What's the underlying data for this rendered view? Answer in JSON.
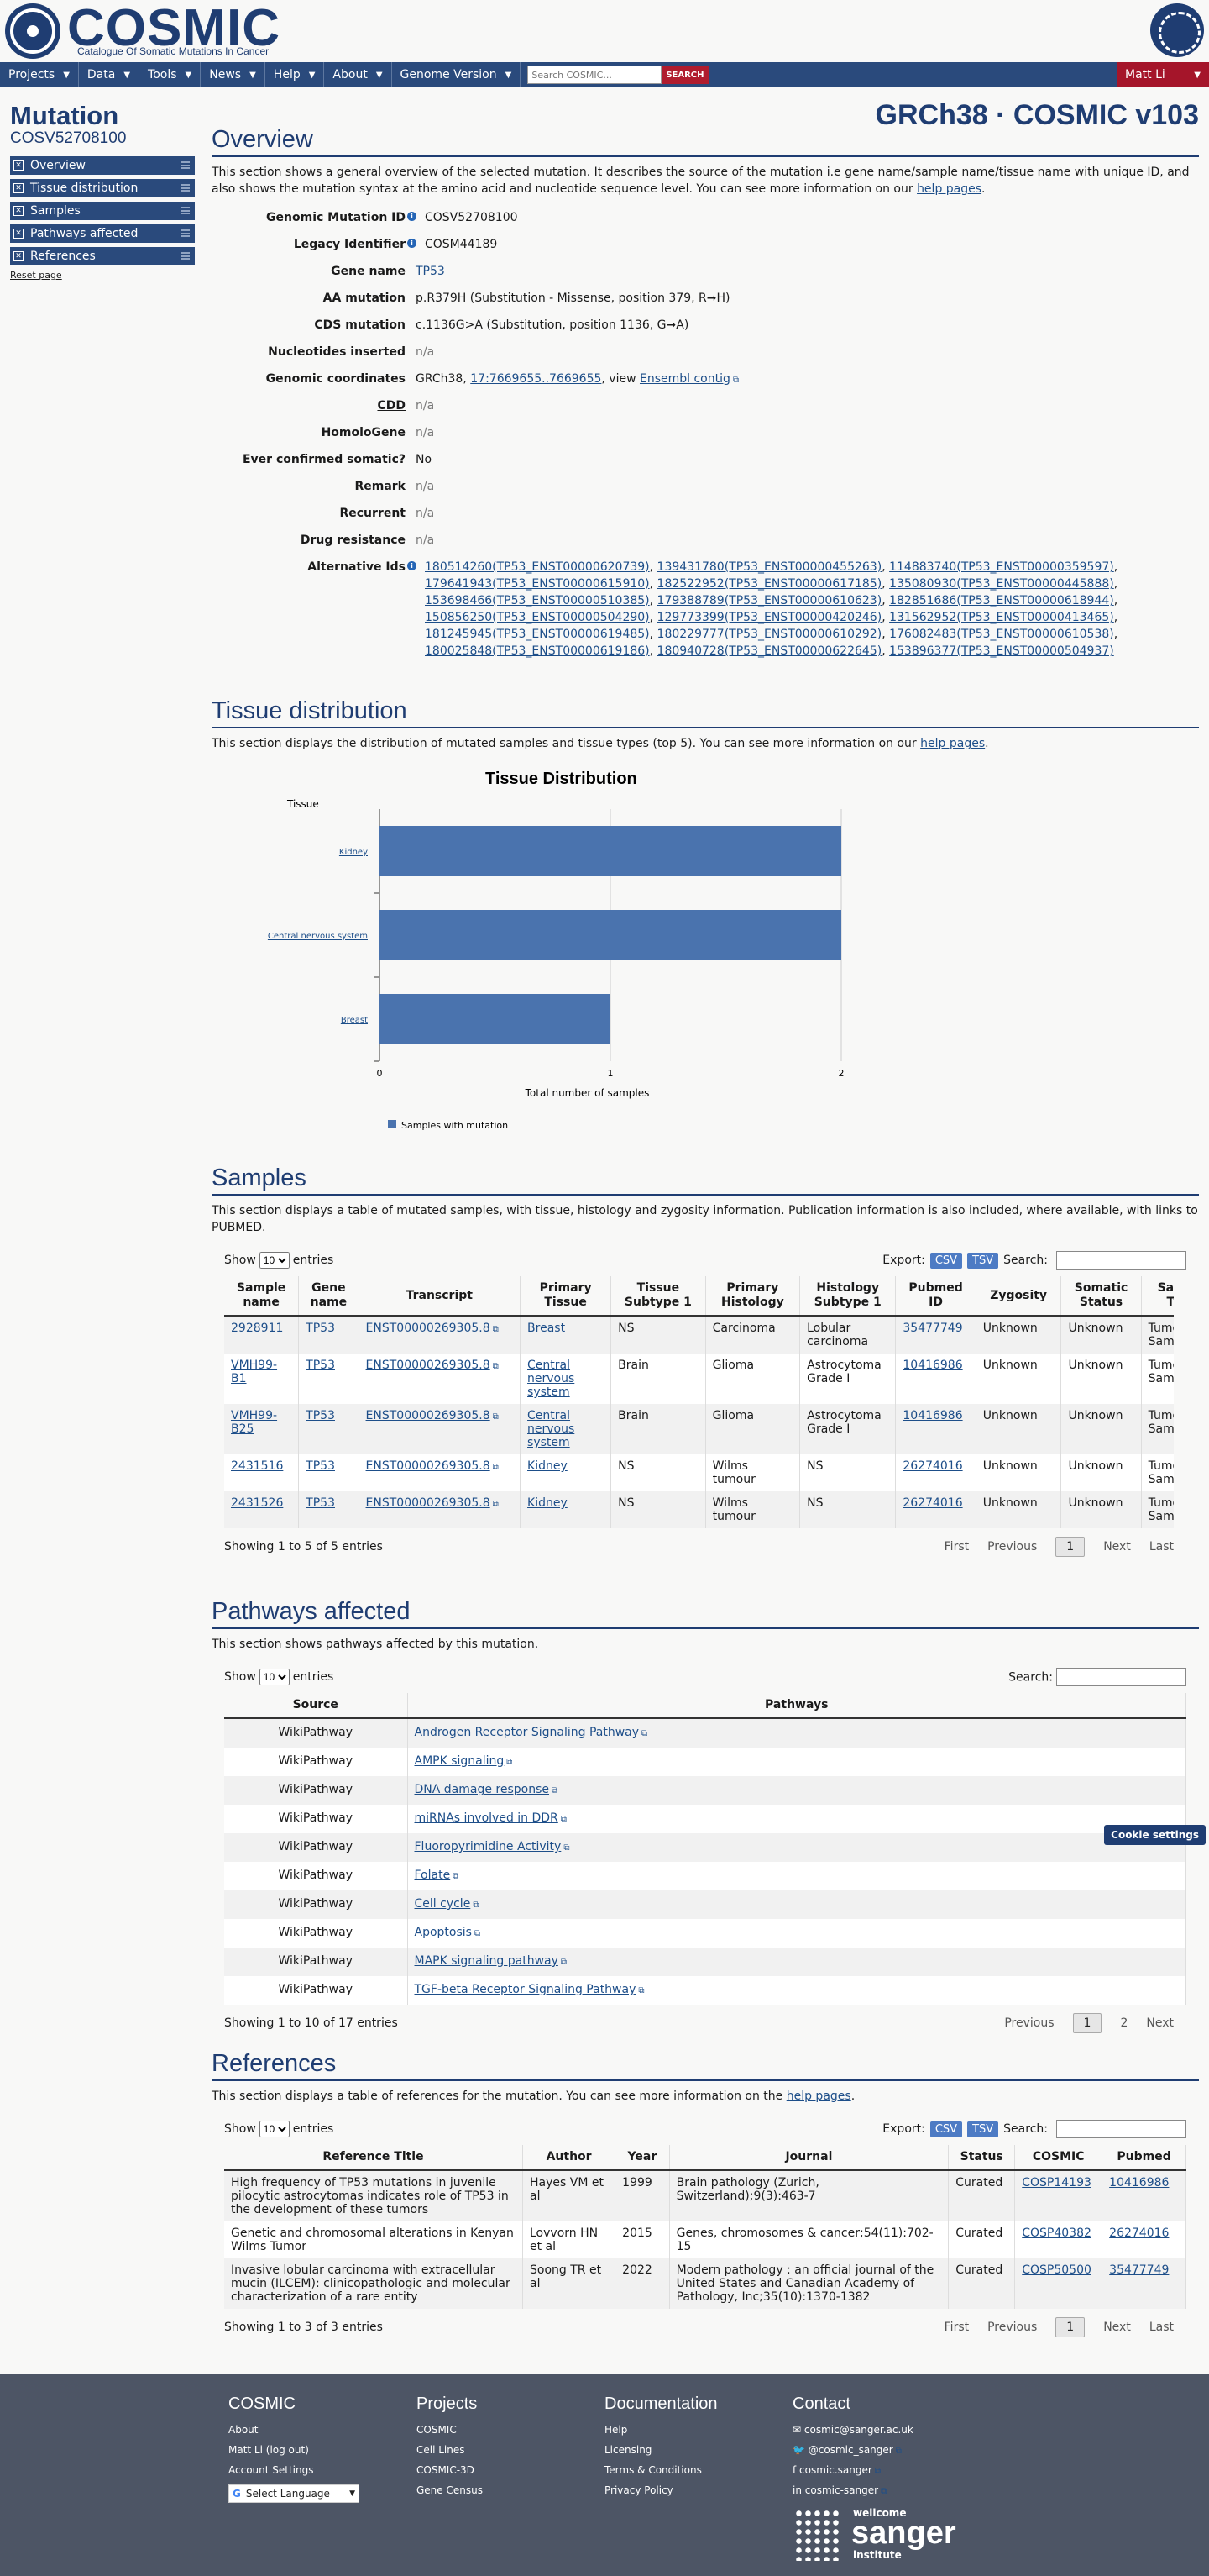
{
  "header": {
    "logo": "COSMIC",
    "logo_sub": "Catalogue Of Somatic Mutations In Cancer"
  },
  "nav": {
    "items": [
      "Projects",
      "Data",
      "Tools",
      "News",
      "Help",
      "About",
      "Genome Version"
    ],
    "search_placeholder": "Search COSMIC...",
    "search_button": "SEARCH",
    "user": "Matt Li"
  },
  "sidebar": {
    "title": "Mutation",
    "id": "COSV52708100",
    "items": [
      "Overview",
      "Tissue distribution",
      "Samples",
      "Pathways affected",
      "References"
    ],
    "reset": "Reset page"
  },
  "build": "GRCh38 · COSMIC v103",
  "overview": {
    "title": "Overview",
    "desc_pre": "This section shows a general overview of the selected mutation. It describes the source of the mutation i.e gene name/sample name/tissue name with unique ID, and also shows the mutation syntax at the amino acid and nucleotide sequence level. You can see more information on our ",
    "desc_link": "help pages",
    "rows": [
      {
        "k": "Genomic Mutation ID",
        "v": "COSV52708100"
      },
      {
        "k": "Legacy Identifier",
        "v": "COSM44189"
      },
      {
        "k": "Gene name",
        "v": "TP53"
      },
      {
        "k": "AA mutation",
        "v": "p.R379H (Substitution - Missense, position 379, R➞H)"
      },
      {
        "k": "CDS mutation",
        "v": "c.1136G>A (Substitution, position 1136, G➞A)"
      },
      {
        "k": "Nucleotides inserted",
        "v": "n/a"
      },
      {
        "k": "Genomic coordinates",
        "v_pre": "GRCh38, ",
        "v_link": "17:7669655..7669655",
        "v_mid": ", view ",
        "v_link2": "Ensembl contig"
      },
      {
        "k": "CDD",
        "v": "n/a"
      },
      {
        "k": "HomoloGene",
        "v": "n/a"
      },
      {
        "k": "Ever confirmed somatic?",
        "v": "No"
      },
      {
        "k": "Remark",
        "v": "n/a"
      },
      {
        "k": "Recurrent",
        "v": "n/a"
      },
      {
        "k": "Drug resistance",
        "v": "n/a"
      },
      {
        "k": "Alternative Ids",
        "v": ""
      }
    ],
    "alt_ids": [
      "180514260(TP53_ENST00000620739)",
      "139431780(TP53_ENST00000455263)",
      "114883740(TP53_ENST00000359597)",
      "179641943(TP53_ENST00000615910)",
      "182522952(TP53_ENST00000617185)",
      "135080930(TP53_ENST00000445888)",
      "153698466(TP53_ENST00000510385)",
      "179388789(TP53_ENST00000610623)",
      "182851686(TP53_ENST00000618944)",
      "150856250(TP53_ENST00000504290)",
      "129773399(TP53_ENST00000420246)",
      "131562952(TP53_ENST00000413465)",
      "181245945(TP53_ENST00000619485)",
      "180229777(TP53_ENST00000610292)",
      "176082483(TP53_ENST00000610538)",
      "180025848(TP53_ENST00000619186)",
      "180940728(TP53_ENST00000622645)",
      "153896377(TP53_ENST00000504937)"
    ]
  },
  "tissue": {
    "title": "Tissue distribution",
    "desc_pre": "This section displays the distribution of mutated samples and tissue types (top 5). You can see more information on our ",
    "desc_link": "help pages"
  },
  "chart_data": {
    "type": "bar",
    "orientation": "horizontal",
    "title": "Tissue Distribution",
    "ylabel": "Tissue",
    "xlabel": "Total number of samples",
    "categories": [
      "Kidney",
      "Central nervous system",
      "Breast"
    ],
    "series": [
      {
        "name": "Samples with mutation",
        "values": [
          2,
          2,
          1
        ],
        "color": "#4a73ae"
      }
    ],
    "xlim": [
      0,
      2
    ],
    "xticks": [
      "0",
      "1",
      "2"
    ],
    "legend": "bottom-left"
  },
  "samples": {
    "title": "Samples",
    "desc": "This section displays a table of mutated samples, with tissue, histology and zygosity information. Publication information is also included, where available, with links to PUBMED.",
    "show": "Show",
    "entries": "entries",
    "len": "10",
    "export": "Export:",
    "csv": "CSV",
    "tsv": "TSV",
    "search": "Search:",
    "headers": [
      "Sample name",
      "Gene name",
      "Transcript",
      "Primary Tissue",
      "Tissue Subtype 1",
      "Primary Histology",
      "Histology Subtype 1",
      "Pubmed ID",
      "Zygosity",
      "Somatic Status",
      "Sample Type"
    ],
    "rows": [
      [
        "2928911",
        "TP53",
        "ENST00000269305.8",
        "Breast",
        "NS",
        "Carcinoma",
        "Lobular carcinoma",
        "35477749",
        "Unknown",
        "Unknown",
        "Tumour Sample"
      ],
      [
        "VMH99-B1",
        "TP53",
        "ENST00000269305.8",
        "Central nervous system",
        "Brain",
        "Glioma",
        "Astrocytoma Grade I",
        "10416986",
        "Unknown",
        "Unknown",
        "Tumour Sample"
      ],
      [
        "VMH99-B25",
        "TP53",
        "ENST00000269305.8",
        "Central nervous system",
        "Brain",
        "Glioma",
        "Astrocytoma Grade I",
        "10416986",
        "Unknown",
        "Unknown",
        "Tumour Sample"
      ],
      [
        "2431516",
        "TP53",
        "ENST00000269305.8",
        "Kidney",
        "NS",
        "Wilms tumour",
        "NS",
        "26274016",
        "Unknown",
        "Unknown",
        "Tumour Sample"
      ],
      [
        "2431526",
        "TP53",
        "ENST00000269305.8",
        "Kidney",
        "NS",
        "Wilms tumour",
        "NS",
        "26274016",
        "Unknown",
        "Unknown",
        "Tumour Sample"
      ]
    ],
    "info": "Showing 1 to 5 of 5 entries",
    "pager": [
      "First",
      "Previous",
      "1",
      "Next",
      "Last"
    ]
  },
  "pathways": {
    "title": "Pathways affected",
    "desc": "This section shows pathways affected by this mutation.",
    "headers": [
      "Source",
      "Pathways"
    ],
    "rows": [
      [
        "WikiPathway",
        "Androgen Receptor Signaling Pathway"
      ],
      [
        "WikiPathway",
        "AMPK signaling"
      ],
      [
        "WikiPathway",
        "DNA damage response"
      ],
      [
        "WikiPathway",
        "miRNAs involved in DDR"
      ],
      [
        "WikiPathway",
        "Fluoropyrimidine Activity"
      ],
      [
        "WikiPathway",
        "Folate"
      ],
      [
        "WikiPathway",
        "Cell cycle"
      ],
      [
        "WikiPathway",
        "Apoptosis"
      ],
      [
        "WikiPathway",
        "MAPK signaling pathway"
      ],
      [
        "WikiPathway",
        "TGF-beta Receptor Signaling Pathway"
      ]
    ],
    "info": "Showing 1 to 10 of 17 entries",
    "pager": [
      "Previous",
      "1",
      "2",
      "Next"
    ]
  },
  "references": {
    "title": "References",
    "desc_pre": "This section displays a table of references for the mutation. You can see more information on the ",
    "desc_link": "help pages",
    "headers": [
      "Reference Title",
      "Author",
      "Year",
      "Journal",
      "Status",
      "COSMIC",
      "Pubmed"
    ],
    "rows": [
      [
        "High frequency of TP53 mutations in juvenile pilocytic astrocytomas indicates role of TP53 in the development of these tumors",
        "Hayes VM et al",
        "1999",
        "Brain pathology (Zurich, Switzerland);9(3):463-7",
        "Curated",
        "COSP14193",
        "10416986"
      ],
      [
        "Genetic and chromosomal alterations in Kenyan Wilms Tumor",
        "Lovvorn HN et al",
        "2015",
        "Genes, chromosomes & cancer;54(11):702-15",
        "Curated",
        "COSP40382",
        "26274016"
      ],
      [
        "Invasive lobular carcinoma with extracellular mucin (ILCEM): clinicopathologic and molecular characterization of a rare entity",
        "Soong TR et al",
        "2022",
        "Modern pathology : an official journal of the United States and Canadian Academy of Pathology, Inc;35(10):1370-1382",
        "Curated",
        "COSP50500",
        "35477749"
      ]
    ],
    "info": "Showing 1 to 3 of 3 entries",
    "pager": [
      "First",
      "Previous",
      "1",
      "Next",
      "Last"
    ]
  },
  "cookie": "Cookie settings",
  "footer": {
    "cosmic": {
      "title": "COSMIC",
      "items": [
        "About",
        "Matt Li (log out)",
        "Account Settings"
      ],
      "lang": "Select Language"
    },
    "projects": {
      "title": "Projects",
      "items": [
        "COSMIC",
        "Cell Lines",
        "COSMIC-3D",
        "Gene Census"
      ]
    },
    "docs": {
      "title": "Documentation",
      "items": [
        "Help",
        "Licensing",
        "Terms & Conditions",
        "Privacy Policy"
      ]
    },
    "contact": {
      "title": "Contact",
      "items": [
        "cosmic@sanger.ac.uk",
        "@cosmic_sanger",
        "cosmic.sanger",
        "cosmic-sanger"
      ]
    },
    "brand": [
      "wellcome",
      "sanger",
      "institute"
    ]
  }
}
